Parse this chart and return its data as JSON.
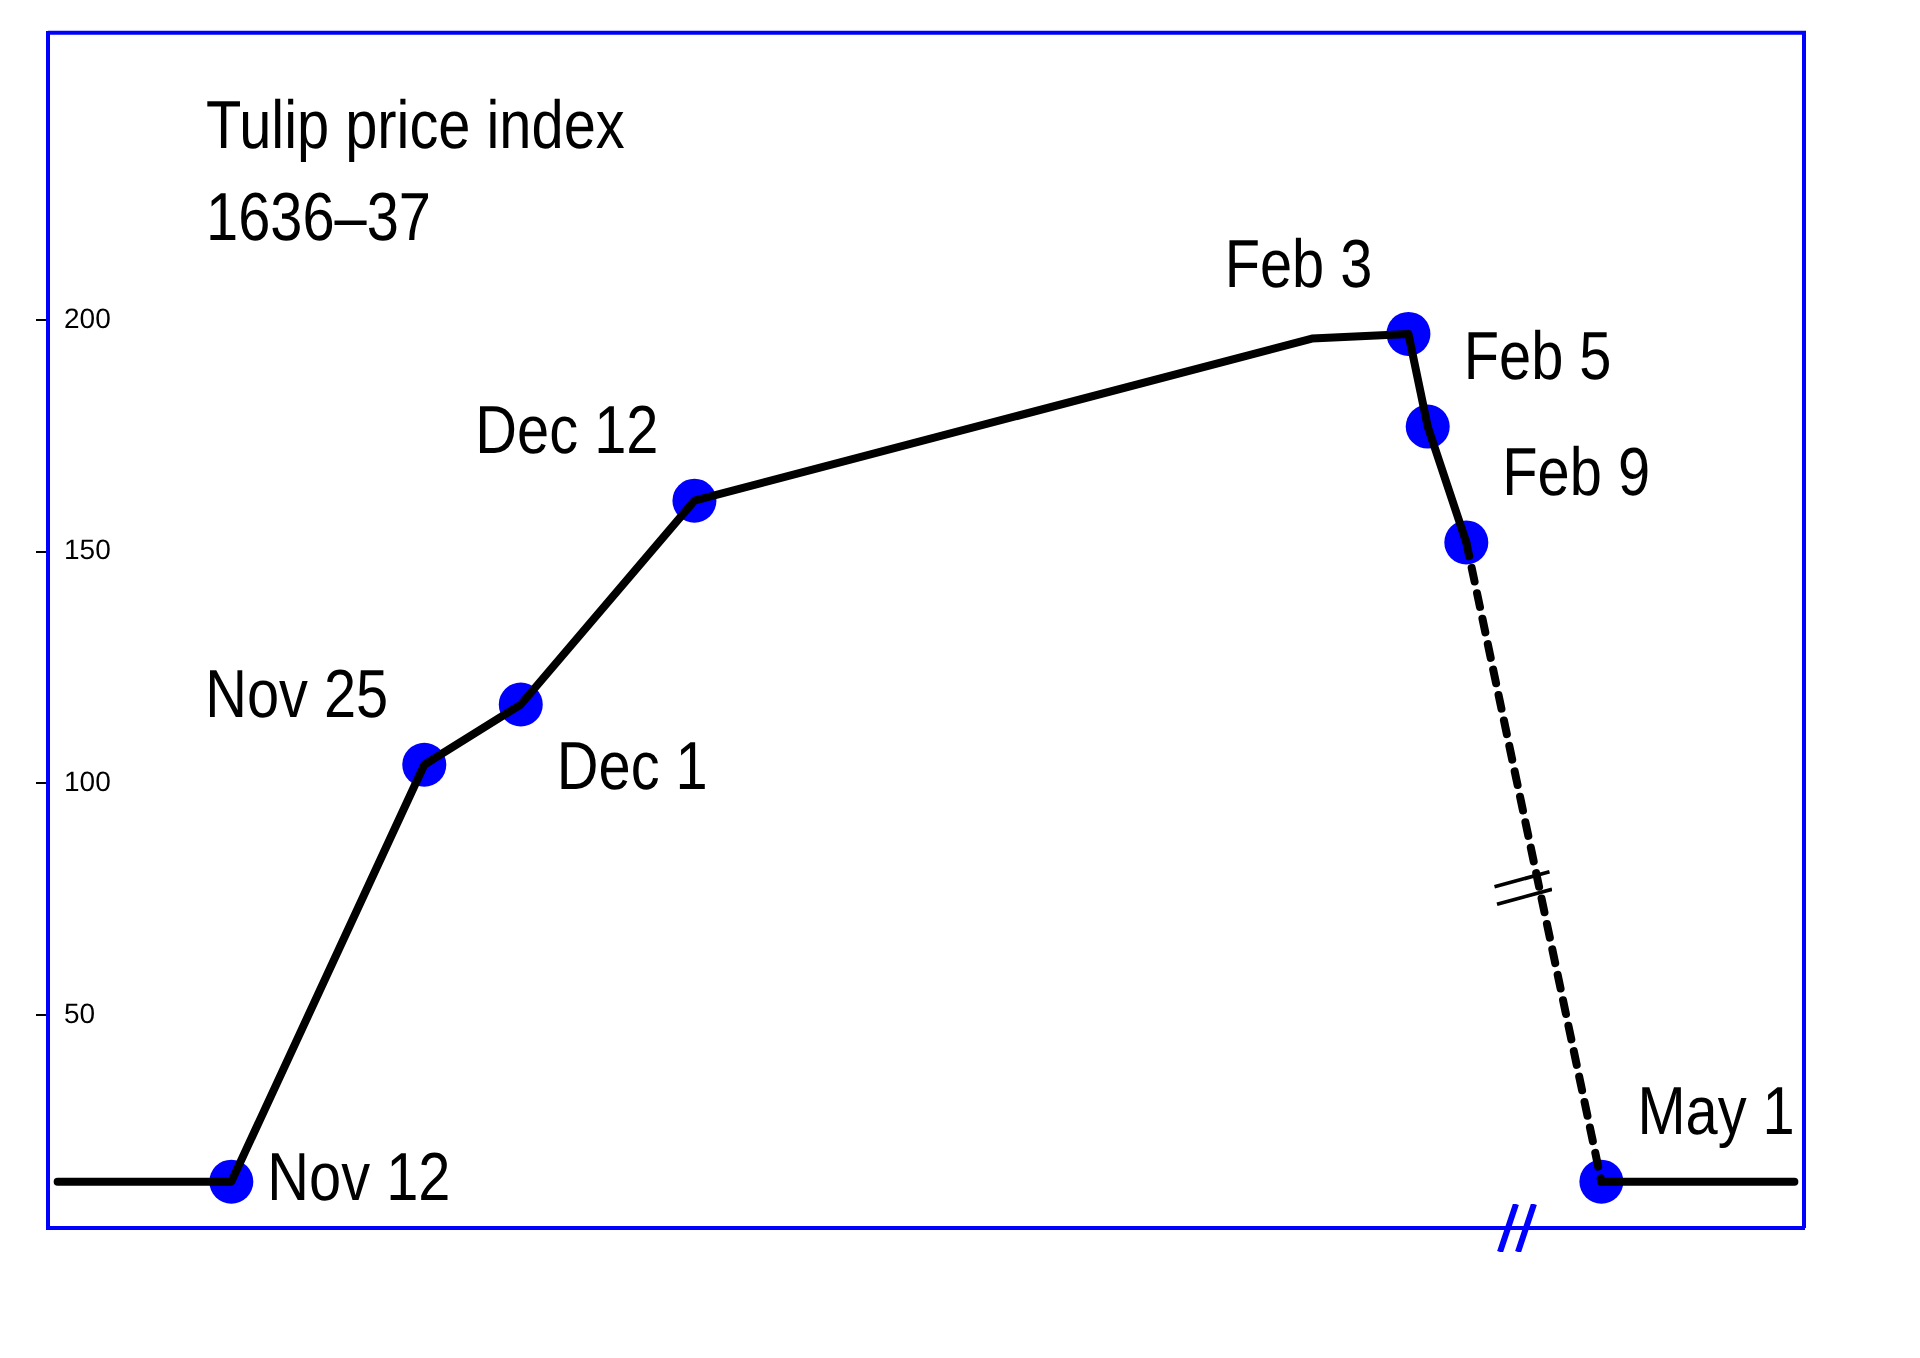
{
  "chart_data": {
    "type": "line",
    "title": "Tulip price index 1636–37",
    "categories": [
      null,
      null,
      null,
      null,
      null,
      null,
      null,
      null,
      null,
      null,
      null,
      null,
      null,
      null,
      null,
      null,
      null,
      null,
      null,
      null,
      null,
      null,
      null,
      null,
      null,
      null,
      null,
      null,
      null,
      null,
      null,
      null,
      null,
      null,
      null,
      null,
      null,
      null,
      null,
      null,
      null,
      null,
      null,
      null,
      null,
      null,
      null,
      null,
      null,
      null,
      null,
      null,
      null,
      null,
      null,
      null,
      null,
      null,
      null,
      null,
      null,
      null,
      null,
      null,
      null,
      null,
      null,
      null,
      null,
      null,
      null,
      null,
      null,
      null,
      null,
      null,
      null,
      null,
      null,
      null,
      null,
      null,
      null,
      null,
      null,
      null,
      null,
      null,
      null,
      null,
      null
    ],
    "series": [
      {
        "type": "line",
        "color": "#000000",
        "marker": "none",
        "line_style": "solid",
        "values": [
          14,
          null,
          null,
          null,
          null,
          null,
          null,
          null,
          null,
          14,
          null,
          null,
          null,
          null,
          null,
          null,
          null,
          null,
          null,
          104,
          null,
          null,
          null,
          null,
          117,
          null,
          null,
          null,
          null,
          null,
          null,
          null,
          null,
          161,
          null,
          null,
          null,
          null,
          null,
          null,
          null,
          null,
          null,
          null,
          null,
          null,
          null,
          null,
          null,
          null,
          null,
          null,
          null,
          null,
          null,
          null,
          null,
          null,
          null,
          null,
          null,
          null,
          null,
          null,
          null,
          196,
          null,
          null,
          null,
          null,
          197,
          177,
          null,
          152,
          null,
          null,
          null,
          null,
          null,
          null,
          null,
          null,
          null,
          null,
          null,
          null,
          null,
          null,
          null,
          null,
          null
        ]
      },
      {
        "type": "line",
        "color": "#000000",
        "marker": "none",
        "line_style": "dashed",
        "values": [
          null,
          null,
          null,
          null,
          null,
          null,
          null,
          null,
          null,
          null,
          null,
          null,
          null,
          null,
          null,
          null,
          null,
          null,
          null,
          null,
          null,
          null,
          null,
          null,
          null,
          null,
          null,
          null,
          null,
          null,
          null,
          null,
          null,
          null,
          null,
          null,
          null,
          null,
          null,
          null,
          null,
          null,
          null,
          null,
          null,
          null,
          null,
          null,
          null,
          null,
          null,
          null,
          null,
          null,
          null,
          null,
          null,
          null,
          null,
          null,
          null,
          null,
          null,
          null,
          null,
          null,
          null,
          null,
          null,
          null,
          null,
          null,
          null,
          152,
          null,
          null,
          null,
          null,
          null,
          null,
          14,
          null,
          null,
          null,
          null,
          null,
          null,
          null,
          null,
          null,
          null
        ]
      },
      {
        "type": "line",
        "color": "#000000",
        "marker": "none",
        "line_style": "solid",
        "values": [
          null,
          null,
          null,
          null,
          null,
          null,
          null,
          null,
          null,
          null,
          null,
          null,
          null,
          null,
          null,
          null,
          null,
          null,
          null,
          null,
          null,
          null,
          null,
          null,
          null,
          null,
          null,
          null,
          null,
          null,
          null,
          null,
          null,
          null,
          null,
          null,
          null,
          null,
          null,
          null,
          null,
          null,
          null,
          null,
          null,
          null,
          null,
          null,
          null,
          null,
          null,
          null,
          null,
          null,
          null,
          null,
          null,
          null,
          null,
          null,
          null,
          null,
          null,
          null,
          null,
          null,
          null,
          null,
          null,
          null,
          null,
          null,
          null,
          null,
          null,
          null,
          null,
          null,
          null,
          null,
          14,
          null,
          null,
          null,
          null,
          null,
          null,
          null,
          null,
          null,
          14
        ]
      },
      {
        "type": "scatter",
        "color": "#0000ff",
        "marker": "circle",
        "values": [
          null,
          null,
          null,
          null,
          null,
          null,
          null,
          null,
          null,
          14,
          null,
          null,
          null,
          null,
          null,
          null,
          null,
          null,
          null,
          104,
          null,
          null,
          null,
          null,
          117,
          null,
          null,
          null,
          null,
          null,
          null,
          null,
          null,
          161,
          null,
          null,
          null,
          null,
          null,
          null,
          null,
          null,
          null,
          null,
          null,
          null,
          null,
          null,
          null,
          null,
          null,
          null,
          null,
          null,
          null,
          null,
          null,
          null,
          null,
          null,
          null,
          null,
          null,
          null,
          null,
          null,
          null,
          null,
          null,
          null,
          197,
          177,
          null,
          152,
          null,
          null,
          null,
          null,
          null,
          null,
          14,
          null,
          null,
          null,
          null,
          null,
          null,
          null,
          null,
          null,
          null
        ]
      }
    ],
    "annotations": [
      "Nov 12",
      "Nov 25",
      "Dec 1",
      "Dec 12",
      "Feb 3",
      "Feb 5",
      "Feb 9",
      "May 1"
    ],
    "ylim": [
      4,
      262
    ],
    "yticks": [
      50,
      100,
      150,
      200
    ],
    "tick_labels": "y",
    "grid": false,
    "legend": false
  }
}
